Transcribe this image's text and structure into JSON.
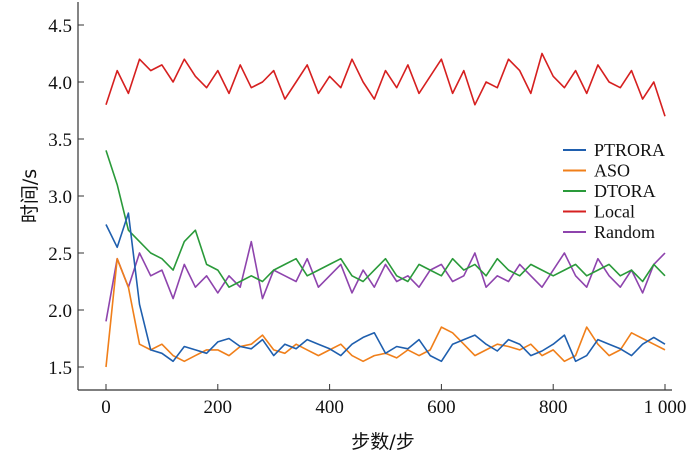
{
  "chart_data": {
    "type": "line",
    "title": "",
    "xlabel": "步数/步",
    "ylabel": "时间/s",
    "xlim": [
      -50,
      1010
    ],
    "ylim": [
      1.3,
      4.7
    ],
    "xticks": [
      0,
      200,
      400,
      600,
      800,
      1000
    ],
    "xtick_labels": [
      "0",
      "200",
      "400",
      "600",
      "800",
      "1 000"
    ],
    "yticks": [
      1.5,
      2.0,
      2.5,
      3.0,
      3.5,
      4.0,
      4.5
    ],
    "ytick_labels": [
      "1.5",
      "2.0",
      "2.5",
      "3.0",
      "3.5",
      "4.0",
      "4.5"
    ],
    "grid": false,
    "legend_position": "center-right",
    "x_step": 20,
    "series": [
      {
        "name": "PTRORA",
        "color": "#1f5fae",
        "values": [
          2.75,
          2.55,
          2.85,
          2.05,
          1.65,
          1.62,
          1.55,
          1.68,
          1.65,
          1.62,
          1.72,
          1.75,
          1.68,
          1.66,
          1.74,
          1.6,
          1.7,
          1.66,
          1.74,
          1.7,
          1.66,
          1.6,
          1.7,
          1.76,
          1.8,
          1.62,
          1.68,
          1.66,
          1.74,
          1.6,
          1.55,
          1.7,
          1.74,
          1.78,
          1.7,
          1.64,
          1.74,
          1.7,
          1.6,
          1.64,
          1.7,
          1.78,
          1.55,
          1.6,
          1.74,
          1.7,
          1.66,
          1.6,
          1.7,
          1.76,
          1.7
        ]
      },
      {
        "name": "ASO",
        "color": "#f07f1a",
        "values": [
          1.5,
          2.45,
          2.2,
          1.7,
          1.65,
          1.7,
          1.6,
          1.55,
          1.6,
          1.65,
          1.65,
          1.6,
          1.68,
          1.7,
          1.78,
          1.65,
          1.62,
          1.7,
          1.65,
          1.6,
          1.65,
          1.7,
          1.6,
          1.55,
          1.6,
          1.62,
          1.58,
          1.65,
          1.6,
          1.65,
          1.85,
          1.8,
          1.7,
          1.6,
          1.65,
          1.7,
          1.68,
          1.65,
          1.7,
          1.6,
          1.65,
          1.55,
          1.6,
          1.85,
          1.7,
          1.6,
          1.65,
          1.8,
          1.75,
          1.7,
          1.65
        ]
      },
      {
        "name": "DTORA",
        "color": "#2a9a3a",
        "values": [
          3.4,
          3.1,
          2.7,
          2.6,
          2.5,
          2.45,
          2.35,
          2.6,
          2.7,
          2.4,
          2.35,
          2.2,
          2.25,
          2.3,
          2.25,
          2.35,
          2.4,
          2.45,
          2.3,
          2.35,
          2.4,
          2.45,
          2.3,
          2.25,
          2.35,
          2.45,
          2.3,
          2.25,
          2.4,
          2.35,
          2.3,
          2.45,
          2.35,
          2.4,
          2.3,
          2.45,
          2.35,
          2.3,
          2.4,
          2.35,
          2.3,
          2.35,
          2.4,
          2.3,
          2.35,
          2.4,
          2.3,
          2.35,
          2.25,
          2.4,
          2.3
        ]
      },
      {
        "name": "Local",
        "color": "#d62020",
        "values": [
          3.8,
          4.1,
          3.9,
          4.2,
          4.1,
          4.15,
          4.0,
          4.2,
          4.05,
          3.95,
          4.1,
          3.9,
          4.15,
          3.95,
          4.0,
          4.1,
          3.85,
          4.0,
          4.15,
          3.9,
          4.05,
          3.95,
          4.2,
          4.0,
          3.85,
          4.1,
          3.95,
          4.15,
          3.9,
          4.05,
          4.2,
          3.9,
          4.1,
          3.8,
          4.0,
          3.95,
          4.2,
          4.1,
          3.9,
          4.25,
          4.05,
          3.95,
          4.1,
          3.9,
          4.15,
          4.0,
          3.95,
          4.1,
          3.85,
          4.0,
          3.7
        ]
      },
      {
        "name": "Random",
        "color": "#8e44ad",
        "values": [
          1.9,
          2.45,
          2.2,
          2.5,
          2.3,
          2.35,
          2.1,
          2.4,
          2.2,
          2.3,
          2.15,
          2.3,
          2.2,
          2.6,
          2.1,
          2.35,
          2.3,
          2.25,
          2.45,
          2.2,
          2.3,
          2.4,
          2.15,
          2.35,
          2.2,
          2.4,
          2.25,
          2.3,
          2.2,
          2.35,
          2.4,
          2.25,
          2.3,
          2.5,
          2.2,
          2.3,
          2.25,
          2.4,
          2.3,
          2.2,
          2.35,
          2.5,
          2.3,
          2.2,
          2.45,
          2.3,
          2.2,
          2.35,
          2.15,
          2.4,
          2.5
        ]
      }
    ]
  }
}
